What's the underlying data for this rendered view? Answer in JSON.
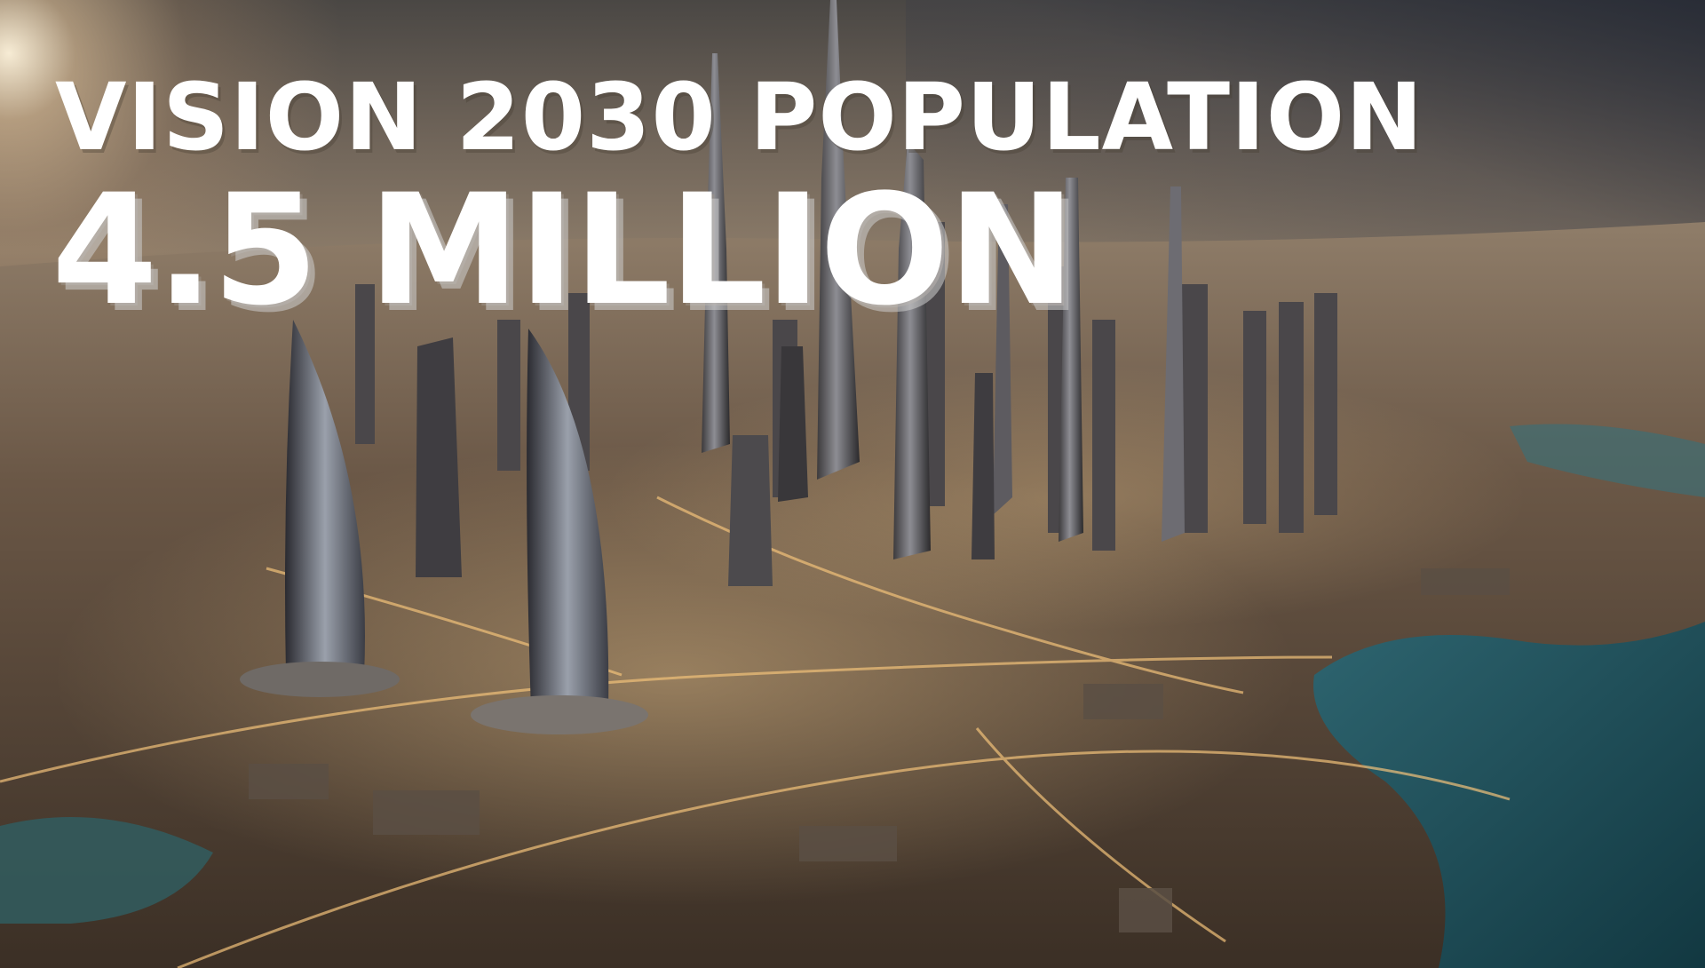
{
  "headline": {
    "title": "VISION 2030 POPULATION",
    "figure": "4.5 MILLION"
  },
  "palette": {
    "title_color": "#ffffff",
    "water": "#1d4a55",
    "city_lights": "#e8b46a",
    "sand": "#b39a7e"
  }
}
